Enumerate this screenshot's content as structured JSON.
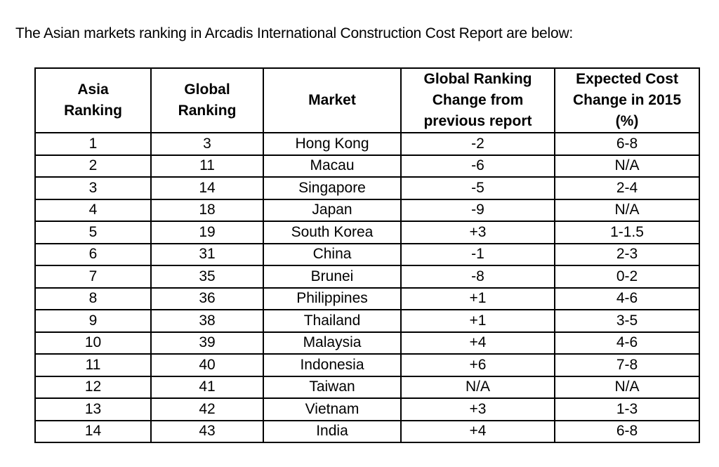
{
  "intro": "The Asian markets ranking in Arcadis International Construction Cost Report are below:",
  "table": {
    "headers": {
      "asia_ranking": [
        "Asia",
        "Ranking"
      ],
      "global_ranking": [
        "Global",
        "Ranking"
      ],
      "market": [
        "Market"
      ],
      "ranking_change": [
        "Global Ranking",
        "Change from",
        "previous report"
      ],
      "cost_change": [
        "Expected Cost",
        "Change in 2015",
        "(%)"
      ]
    },
    "rows": [
      [
        "1",
        "3",
        "Hong Kong",
        "-2",
        "6-8"
      ],
      [
        "2",
        "11",
        "Macau",
        "-6",
        "N/A"
      ],
      [
        "3",
        "14",
        "Singapore",
        "-5",
        "2-4"
      ],
      [
        "4",
        "18",
        "Japan",
        "-9",
        "N/A"
      ],
      [
        "5",
        "19",
        "South Korea",
        "+3",
        "1-1.5"
      ],
      [
        "6",
        "31",
        "China",
        "-1",
        "2-3"
      ],
      [
        "7",
        "35",
        "Brunei",
        "-8",
        "0-2"
      ],
      [
        "8",
        "36",
        "Philippines",
        "+1",
        "4-6"
      ],
      [
        "9",
        "38",
        "Thailand",
        "+1",
        "3-5"
      ],
      [
        "10",
        "39",
        "Malaysia",
        "+4",
        "4-6"
      ],
      [
        "11",
        "40",
        "Indonesia",
        "+6",
        "7-8"
      ],
      [
        "12",
        "41",
        "Taiwan",
        "N/A",
        "N/A"
      ],
      [
        "13",
        "42",
        "Vietnam",
        "+3",
        "1-3"
      ],
      [
        "14",
        "43",
        "India",
        "+4",
        "6-8"
      ]
    ]
  }
}
